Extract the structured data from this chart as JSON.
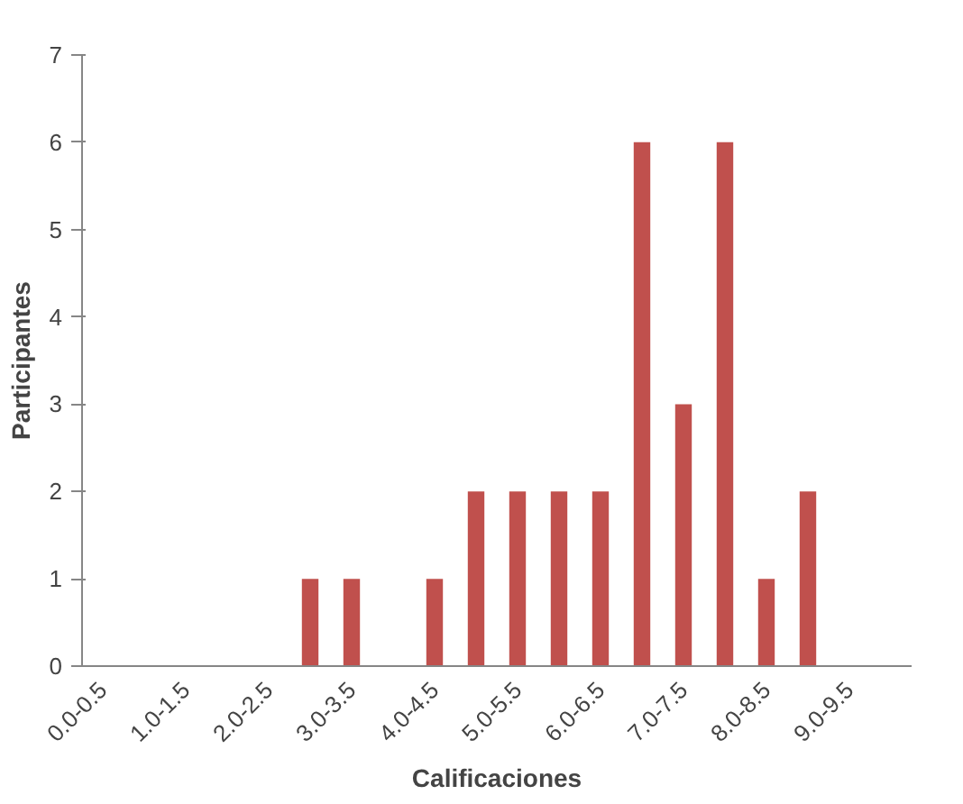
{
  "chart_data": {
    "type": "bar",
    "xlabel": "Calificaciones",
    "ylabel": "Participantes",
    "categories": [
      "0.0-0.5",
      null,
      "1.0-1.5",
      null,
      "2.0-2.5",
      null,
      "3.0-3.5",
      null,
      "4.0-4.5",
      null,
      "5.0-5.5",
      null,
      "6.0-6.5",
      null,
      "7.0-7.5",
      null,
      "8.0-8.5",
      null,
      "9.0-9.5",
      null
    ],
    "values": [
      0,
      0,
      0,
      0,
      0,
      1,
      1,
      0,
      1,
      2,
      2,
      2,
      2,
      6,
      3,
      6,
      1,
      2,
      0,
      0
    ],
    "color": "#c0504d",
    "ylim": [
      0,
      7
    ],
    "yticks": [
      0,
      1,
      2,
      3,
      4,
      5,
      6,
      7
    ],
    "grid": false
  }
}
